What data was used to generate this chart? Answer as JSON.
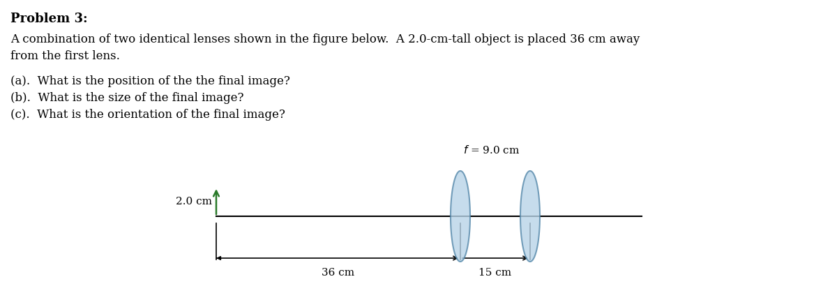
{
  "title": "Problem 3:",
  "paragraph1": "A combination of two identical lenses shown in the figure below.  A 2.0-cm-tall object is placed 36 cm away",
  "paragraph2": "from the first lens.",
  "questions": [
    "(a).  What is the position of the the final image?",
    "(b).  What is the size of the final image?",
    "(c).  What is the orientation of the final image?"
  ],
  "focal_label": "f = 9.0 cm",
  "object_label": "2.0 cm",
  "dist1_label": "36 cm",
  "dist2_label": "15 cm",
  "bg_color": "#ffffff",
  "lens_color": "#b8d4e8",
  "lens_edge_color": "#5588aa",
  "arrow_color": "#2a7a2a"
}
